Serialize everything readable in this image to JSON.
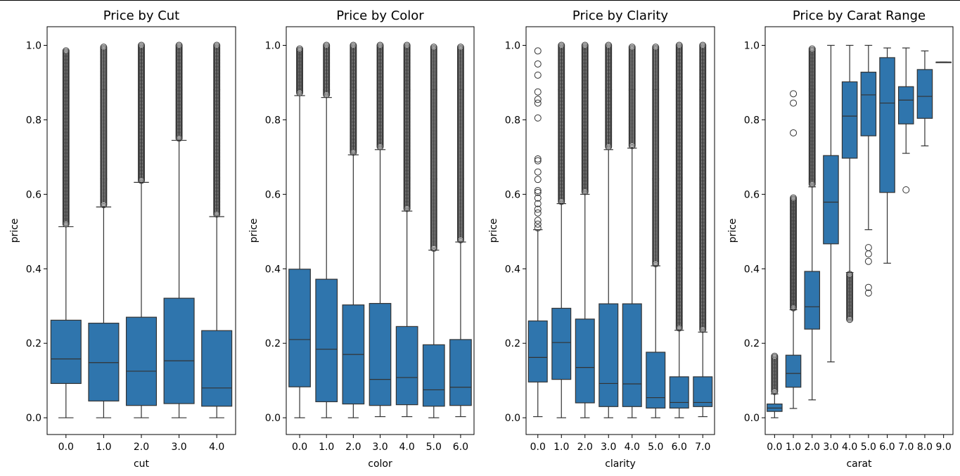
{
  "colors": {
    "box": "#2f75ad",
    "line": "#333333",
    "axis": "#000000",
    "flier": "#333333"
  },
  "chart_data": [
    {
      "type": "boxplot",
      "title": "Price by Cut",
      "xlabel": "cut",
      "ylabel": "price",
      "ylim": [
        -0.045,
        1.05
      ],
      "yticks": [
        0.0,
        0.2,
        0.4,
        0.6,
        0.8,
        1.0
      ],
      "categories": [
        "0.0",
        "1.0",
        "2.0",
        "3.0",
        "4.0"
      ],
      "boxes": [
        {
          "whislo": 0.0,
          "q1": 0.092,
          "med": 0.158,
          "q3": 0.262,
          "whishi": 0.513,
          "fliers": {
            "range": [
              0.52,
              0.985
            ]
          }
        },
        {
          "whislo": 0.0,
          "q1": 0.045,
          "med": 0.148,
          "q3": 0.254,
          "whishi": 0.566,
          "fliers": {
            "range": [
              0.57,
              0.995
            ]
          }
        },
        {
          "whislo": 0.0,
          "q1": 0.033,
          "med": 0.125,
          "q3": 0.27,
          "whishi": 0.632,
          "fliers": {
            "range": [
              0.637,
              1.0
            ]
          }
        },
        {
          "whislo": 0.0,
          "q1": 0.038,
          "med": 0.153,
          "q3": 0.321,
          "whishi": 0.745,
          "fliers": {
            "range": [
              0.75,
              1.0
            ]
          }
        },
        {
          "whislo": 0.0,
          "q1": 0.031,
          "med": 0.08,
          "q3": 0.234,
          "whishi": 0.54,
          "fliers": {
            "range": [
              0.545,
              1.0
            ]
          }
        }
      ]
    },
    {
      "type": "boxplot",
      "title": "Price by Color",
      "xlabel": "color",
      "ylabel": "price",
      "ylim": [
        -0.045,
        1.05
      ],
      "yticks": [
        0.0,
        0.2,
        0.4,
        0.6,
        0.8,
        1.0
      ],
      "categories": [
        "0.0",
        "1.0",
        "2.0",
        "3.0",
        "4.0",
        "5.0",
        "6.0"
      ],
      "boxes": [
        {
          "whislo": 0.0,
          "q1": 0.083,
          "med": 0.21,
          "q3": 0.399,
          "whishi": 0.865,
          "fliers": {
            "range": [
              0.87,
              0.99
            ]
          }
        },
        {
          "whislo": 0.0,
          "q1": 0.043,
          "med": 0.184,
          "q3": 0.372,
          "whishi": 0.86,
          "fliers": {
            "range": [
              0.865,
              1.0
            ]
          }
        },
        {
          "whislo": 0.0,
          "q1": 0.037,
          "med": 0.17,
          "q3": 0.303,
          "whishi": 0.706,
          "fliers": {
            "range": [
              0.71,
              1.0
            ]
          }
        },
        {
          "whislo": 0.003,
          "q1": 0.033,
          "med": 0.103,
          "q3": 0.307,
          "whishi": 0.72,
          "fliers": {
            "range": [
              0.725,
              1.0
            ]
          }
        },
        {
          "whislo": 0.003,
          "q1": 0.035,
          "med": 0.108,
          "q3": 0.245,
          "whishi": 0.555,
          "fliers": {
            "range": [
              0.56,
              1.0
            ]
          }
        },
        {
          "whislo": 0.0,
          "q1": 0.031,
          "med": 0.075,
          "q3": 0.196,
          "whishi": 0.45,
          "fliers": {
            "range": [
              0.455,
              0.995
            ]
          }
        },
        {
          "whislo": 0.003,
          "q1": 0.033,
          "med": 0.082,
          "q3": 0.21,
          "whishi": 0.472,
          "fliers": {
            "range": [
              0.477,
              0.995
            ]
          }
        }
      ]
    },
    {
      "type": "boxplot",
      "title": "Price by Clarity",
      "xlabel": "clarity",
      "ylabel": "price",
      "ylim": [
        -0.045,
        1.05
      ],
      "yticks": [
        0.0,
        0.2,
        0.4,
        0.6,
        0.8,
        1.0
      ],
      "categories": [
        "0.0",
        "1.0",
        "2.0",
        "3.0",
        "4.0",
        "5.0",
        "6.0",
        "7.0"
      ],
      "boxes": [
        {
          "whislo": 0.003,
          "q1": 0.096,
          "med": 0.162,
          "q3": 0.26,
          "whishi": 0.505,
          "fliers": {
            "points": [
              0.51,
              0.52,
              0.53,
              0.55,
              0.56,
              0.575,
              0.59,
              0.605,
              0.61,
              0.64,
              0.66,
              0.69,
              0.695,
              0.805,
              0.845,
              0.855,
              0.875,
              0.92,
              0.95,
              0.985
            ]
          }
        },
        {
          "whislo": 0.0,
          "q1": 0.103,
          "med": 0.202,
          "q3": 0.294,
          "whishi": 0.575,
          "fliers": {
            "range": [
              0.58,
              1.0
            ]
          }
        },
        {
          "whislo": 0.0,
          "q1": 0.04,
          "med": 0.135,
          "q3": 0.265,
          "whishi": 0.6,
          "fliers": {
            "range": [
              0.605,
              1.0
            ]
          }
        },
        {
          "whislo": 0.0,
          "q1": 0.03,
          "med": 0.092,
          "q3": 0.306,
          "whishi": 0.72,
          "fliers": {
            "range": [
              0.725,
              1.0
            ]
          }
        },
        {
          "whislo": 0.0,
          "q1": 0.03,
          "med": 0.091,
          "q3": 0.306,
          "whishi": 0.724,
          "fliers": {
            "range": [
              0.73,
              0.995
            ]
          }
        },
        {
          "whislo": 0.0,
          "q1": 0.026,
          "med": 0.054,
          "q3": 0.176,
          "whishi": 0.408,
          "fliers": {
            "range": [
              0.413,
              0.995
            ]
          }
        },
        {
          "whislo": 0.0,
          "q1": 0.026,
          "med": 0.041,
          "q3": 0.11,
          "whishi": 0.235,
          "fliers": {
            "range": [
              0.24,
              1.0
            ]
          }
        },
        {
          "whislo": 0.003,
          "q1": 0.03,
          "med": 0.041,
          "q3": 0.11,
          "whishi": 0.23,
          "fliers": {
            "range": [
              0.235,
              1.0
            ]
          }
        }
      ]
    },
    {
      "type": "boxplot",
      "title": "Price by Carat Range",
      "xlabel": "carat",
      "ylabel": "price",
      "ylim": [
        -0.045,
        1.05
      ],
      "yticks": [
        0.0,
        0.2,
        0.4,
        0.6,
        0.8,
        1.0
      ],
      "categories": [
        "0.0",
        "1.0",
        "2.0",
        "3.0",
        "4.0",
        "5.0",
        "6.0",
        "7.0",
        "8.0",
        "9.0"
      ],
      "boxes": [
        {
          "whislo": 0.0,
          "q1": 0.017,
          "med": 0.026,
          "q3": 0.037,
          "whishi": 0.064,
          "fliers": {
            "range": [
              0.068,
              0.165
            ]
          }
        },
        {
          "whislo": 0.025,
          "q1": 0.082,
          "med": 0.119,
          "q3": 0.168,
          "whishi": 0.29,
          "fliers": {
            "range": [
              0.295,
              0.59
            ],
            "points": [
              0.765,
              0.845,
              0.87
            ]
          }
        },
        {
          "whislo": 0.048,
          "q1": 0.238,
          "med": 0.298,
          "q3": 0.393,
          "whishi": 0.62,
          "fliers": {
            "range": [
              0.625,
              0.99
            ]
          }
        },
        {
          "whislo": 0.15,
          "q1": 0.467,
          "med": 0.579,
          "q3": 0.704,
          "whishi": 1.0,
          "fliers": {
            "points": []
          }
        },
        {
          "whislo": 0.39,
          "q1": 0.697,
          "med": 0.81,
          "q3": 0.902,
          "whishi": 1.0,
          "fliers": {
            "range": [
              0.263,
              0.385
            ]
          }
        },
        {
          "whislo": 0.505,
          "q1": 0.757,
          "med": 0.867,
          "q3": 0.928,
          "whishi": 1.0,
          "fliers": {
            "points": [
              0.335,
              0.35,
              0.42,
              0.44,
              0.457
            ]
          }
        },
        {
          "whislo": 0.415,
          "q1": 0.605,
          "med": 0.845,
          "q3": 0.967,
          "whishi": 0.993,
          "fliers": {
            "points": []
          }
        },
        {
          "whislo": 0.71,
          "q1": 0.789,
          "med": 0.853,
          "q3": 0.889,
          "whishi": 0.993,
          "fliers": {
            "points": [
              0.612
            ]
          }
        },
        {
          "whislo": 0.73,
          "q1": 0.804,
          "med": 0.863,
          "q3": 0.935,
          "whishi": 0.985,
          "fliers": {
            "points": []
          }
        },
        {
          "whislo": 0.955,
          "q1": 0.955,
          "med": 0.955,
          "q3": 0.955,
          "whishi": 0.955,
          "fliers": {
            "points": []
          }
        }
      ]
    }
  ]
}
